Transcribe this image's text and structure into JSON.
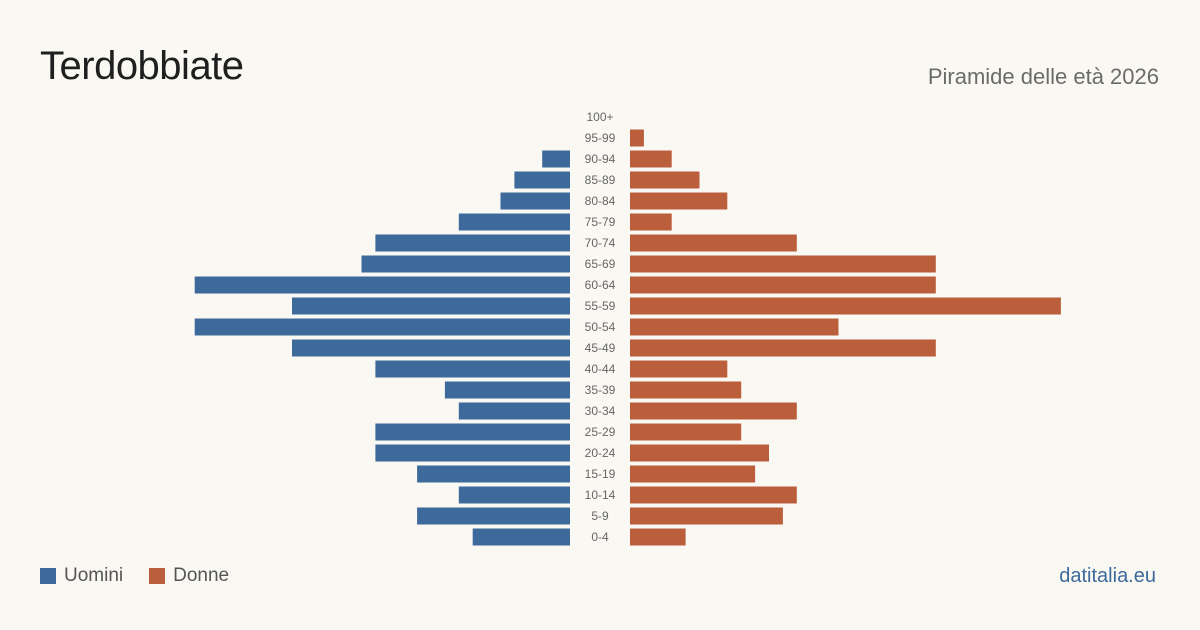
{
  "header": {
    "title": "Terdobbiate",
    "subtitle": "Piramide delle età 2026"
  },
  "legend": {
    "men_label": "Uomini",
    "women_label": "Donne"
  },
  "source": "datitalia.eu",
  "colors": {
    "men": "#3d6a9b",
    "women": "#bb5e3c"
  },
  "chart_data": {
    "type": "bar",
    "orientation": "horizontal-pyramid",
    "categories": [
      "100+",
      "95-99",
      "90-94",
      "85-89",
      "80-84",
      "75-79",
      "70-74",
      "65-69",
      "60-64",
      "55-59",
      "50-54",
      "45-49",
      "40-44",
      "35-39",
      "30-34",
      "25-29",
      "20-24",
      "15-19",
      "10-14",
      "5-9",
      "0-4"
    ],
    "series": [
      {
        "name": "Uomini",
        "values": [
          0,
          0,
          2,
          4,
          5,
          8,
          14,
          15,
          27,
          20,
          27,
          20,
          14,
          9,
          8,
          14,
          14,
          11,
          8,
          11,
          7
        ]
      },
      {
        "name": "Donne",
        "values": [
          0,
          1,
          3,
          5,
          7,
          3,
          12,
          22,
          22,
          31,
          15,
          22,
          7,
          8,
          12,
          8,
          10,
          9,
          12,
          11,
          4
        ]
      }
    ],
    "legend_position": "bottom-left",
    "grid": false
  }
}
